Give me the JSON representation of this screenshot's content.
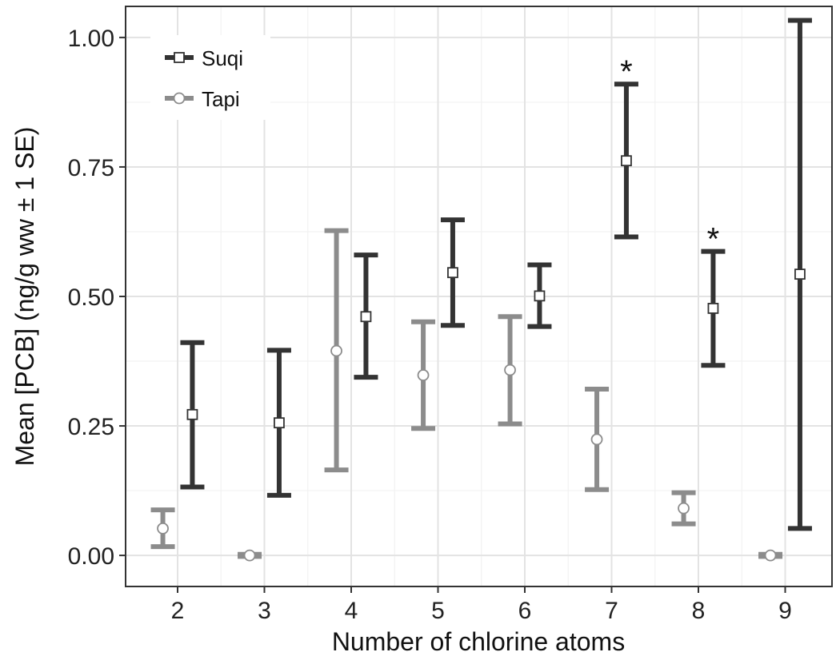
{
  "chart_data": {
    "type": "scatter",
    "xlabel": "Number of chlorine atoms",
    "ylabel": "Mean [PCB] (ng/g ww ± 1 SE)",
    "categories": [
      "2",
      "3",
      "4",
      "5",
      "6",
      "7",
      "8",
      "9"
    ],
    "ylim": [
      -0.06,
      1.06
    ],
    "yticks": [
      "0.00",
      "0.25",
      "0.50",
      "0.75",
      "1.00"
    ],
    "grid": true,
    "legend_position": "top-left",
    "series": [
      {
        "name": "Suqi",
        "color": "#333333",
        "marker": "square",
        "offset": 0.17,
        "mean": [
          0.272,
          0.256,
          0.461,
          0.546,
          0.501,
          0.762,
          0.477,
          0.543
        ],
        "lower": [
          0.132,
          0.116,
          0.344,
          0.444,
          0.442,
          0.615,
          0.367,
          0.052
        ],
        "upper": [
          0.411,
          0.396,
          0.58,
          0.648,
          0.561,
          0.91,
          0.587,
          1.033
        ]
      },
      {
        "name": "Tapi",
        "color": "#8c8c8c",
        "marker": "circle",
        "offset": -0.17,
        "mean": [
          0.052,
          0.0,
          0.395,
          0.348,
          0.358,
          0.224,
          0.091,
          0.0
        ],
        "lower": [
          0.017,
          -0.002,
          0.165,
          0.245,
          0.254,
          0.127,
          0.061,
          -0.002
        ],
        "upper": [
          0.088,
          0.002,
          0.627,
          0.451,
          0.461,
          0.321,
          0.121,
          0.002
        ]
      }
    ],
    "annotations": [
      {
        "text": "*",
        "series": "Suqi",
        "category": "7"
      },
      {
        "text": "*",
        "series": "Suqi",
        "category": "8"
      }
    ]
  }
}
